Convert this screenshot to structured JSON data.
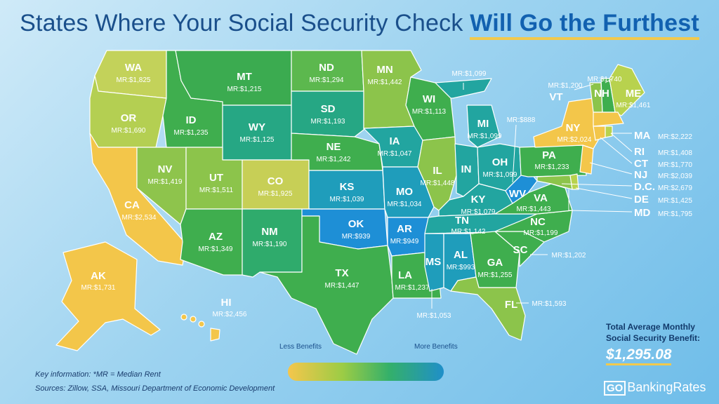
{
  "title": {
    "main": "States Where Your Social Security Check ",
    "highlight": "Will Go the Furthest"
  },
  "colors": {
    "yellow": "#f2c94c",
    "yellow_green": "#b8d24e",
    "light_green": "#8cc44b",
    "green": "#3fae4e",
    "teal": "#22a88a",
    "blue_teal": "#1f9dbb",
    "blue": "#1e8fd6",
    "title": "#1a4f8b"
  },
  "states": {
    "WA": {
      "abbr": "WA",
      "mr": "MR:$1,825"
    },
    "OR": {
      "abbr": "OR",
      "mr": "MR:$1,690"
    },
    "CA": {
      "abbr": "CA",
      "mr": "MR:$2,534"
    },
    "NV": {
      "abbr": "NV",
      "mr": "MR:$1,419"
    },
    "ID": {
      "abbr": "ID",
      "mr": "MR:$1,235"
    },
    "MT": {
      "abbr": "MT",
      "mr": "MR:$1,215"
    },
    "WY": {
      "abbr": "WY",
      "mr": "MR:$1,125"
    },
    "UT": {
      "abbr": "UT",
      "mr": "MR:$1,511"
    },
    "AZ": {
      "abbr": "AZ",
      "mr": "MR:$1,349"
    },
    "CO": {
      "abbr": "CO",
      "mr": "MR:$1,925"
    },
    "NM": {
      "abbr": "NM",
      "mr": "MR:$1,190"
    },
    "ND": {
      "abbr": "ND",
      "mr": "MR:$1,294"
    },
    "SD": {
      "abbr": "SD",
      "mr": "MR:$1,193"
    },
    "NE": {
      "abbr": "NE",
      "mr": "MR:$1,242"
    },
    "KS": {
      "abbr": "KS",
      "mr": "MR:$1,039"
    },
    "OK": {
      "abbr": "OK",
      "mr": "MR:$939"
    },
    "TX": {
      "abbr": "TX",
      "mr": "MR:$1,447"
    },
    "MN": {
      "abbr": "MN",
      "mr": "MR:$1,442"
    },
    "IA": {
      "abbr": "IA",
      "mr": "MR:$1,047"
    },
    "MO": {
      "abbr": "MO",
      "mr": "MR:$1,034"
    },
    "AR": {
      "abbr": "AR",
      "mr": "MR:$949"
    },
    "LA": {
      "abbr": "LA",
      "mr": "MR:$1,237"
    },
    "WI": {
      "abbr": "WI",
      "mr": "MR:$1,113"
    },
    "IL": {
      "abbr": "IL",
      "mr": "MR:$1,448"
    },
    "MI": {
      "abbr": "MI",
      "mr": "MR:$1,099"
    },
    "MI_UP": {
      "mr": "MR:$1,099"
    },
    "IN": {
      "abbr": "IN"
    },
    "IN_EXT": {
      "mr": "MR:$888"
    },
    "OH": {
      "abbr": "OH",
      "mr": "MR:$1,099"
    },
    "KY": {
      "abbr": "KY",
      "mr": "MR:$1,079"
    },
    "TN": {
      "abbr": "TN",
      "mr": "MR:$1,142"
    },
    "MS": {
      "abbr": "MS"
    },
    "MS_EXT": {
      "mr": "MR:$1,053"
    },
    "AL": {
      "abbr": "AL",
      "mr": "MR:$993"
    },
    "GA": {
      "abbr": "GA",
      "mr": "MR:$1,255"
    },
    "FL": {
      "abbr": "FL",
      "mr": "MR:$1,593"
    },
    "SC": {
      "abbr": "SC"
    },
    "SC_EXT": {
      "mr": "MR:$1,202"
    },
    "NC": {
      "abbr": "NC",
      "mr": "MR:$1,199"
    },
    "VA": {
      "abbr": "VA",
      "mr": "MR:$1,443"
    },
    "WV": {
      "abbr": "WV"
    },
    "PA": {
      "abbr": "PA",
      "mr": "MR:$1,233"
    },
    "NY": {
      "abbr": "NY",
      "mr": "MR:$2,024"
    },
    "VT": {
      "abbr": "VT",
      "mr": "MR:$1,200"
    },
    "NH": {
      "abbr": "NH",
      "mr": "MR:$1,740"
    },
    "ME": {
      "abbr": "ME",
      "mr": "MR:$1,461"
    },
    "MA": {
      "abbr": "MA",
      "mr": "MR:$2,222"
    },
    "RI": {
      "abbr": "RI",
      "mr": "MR:$1,408"
    },
    "CT": {
      "abbr": "CT",
      "mr": "MR:$1,770"
    },
    "NJ": {
      "abbr": "NJ",
      "mr": "MR:$2,039"
    },
    "DC": {
      "abbr": "D.C.",
      "mr": "MR:$2,679"
    },
    "DE": {
      "abbr": "DE",
      "mr": "MR:$1,425"
    },
    "MD": {
      "abbr": "MD",
      "mr": "MR:$1,795"
    },
    "AK": {
      "abbr": "AK",
      "mr": "MR:$1,731"
    },
    "HI": {
      "abbr": "HI",
      "mr": "MR:$2,456"
    }
  },
  "legend": {
    "low": "Less Benefits",
    "high": "More Benefits"
  },
  "key_info": "Key information: *MR = Median Rent",
  "sources": "Sources: Zillow, SSA, Missouri Department of Economic Development",
  "total": {
    "line1": "Total Average Monthly",
    "line2": "Social Security Benefit:",
    "value": "$1,295.08"
  },
  "brand": {
    "go": "GO",
    "name": "BankingRates"
  }
}
